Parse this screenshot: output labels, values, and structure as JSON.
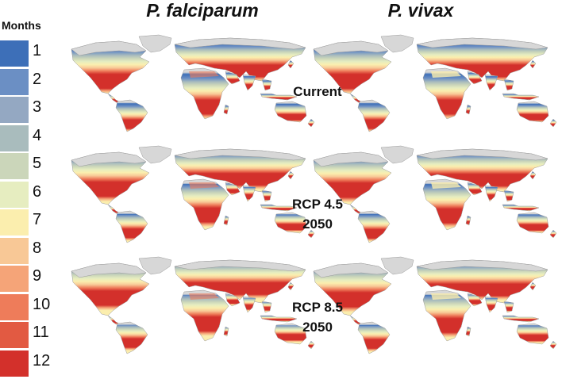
{
  "titles": {
    "left": "P. falciparum",
    "right": "P. vivax"
  },
  "legend": {
    "title": "Months",
    "items": [
      {
        "label": "1",
        "color": "#3d6fb8"
      },
      {
        "label": "2",
        "color": "#6b8fc4"
      },
      {
        "label": "3",
        "color": "#94a8c2"
      },
      {
        "label": "4",
        "color": "#a9bcbd"
      },
      {
        "label": "5",
        "color": "#cbd6ba"
      },
      {
        "label": "6",
        "color": "#e6edc0"
      },
      {
        "label": "7",
        "color": "#fbeeae"
      },
      {
        "label": "8",
        "color": "#f8c896"
      },
      {
        "label": "9",
        "color": "#f5a478"
      },
      {
        "label": "10",
        "color": "#ee7c5a"
      },
      {
        "label": "11",
        "color": "#e25a42"
      },
      {
        "label": "12",
        "color": "#d3302b"
      }
    ]
  },
  "rows": [
    {
      "label_lines": [
        "Current",
        ""
      ]
    },
    {
      "label_lines": [
        "RCP 4.5",
        "2050"
      ]
    },
    {
      "label_lines": [
        "RCP 8.5",
        "2050"
      ]
    }
  ],
  "colors": {
    "land_grey": "#d7d7d7",
    "outline": "#9a9a9a"
  }
}
